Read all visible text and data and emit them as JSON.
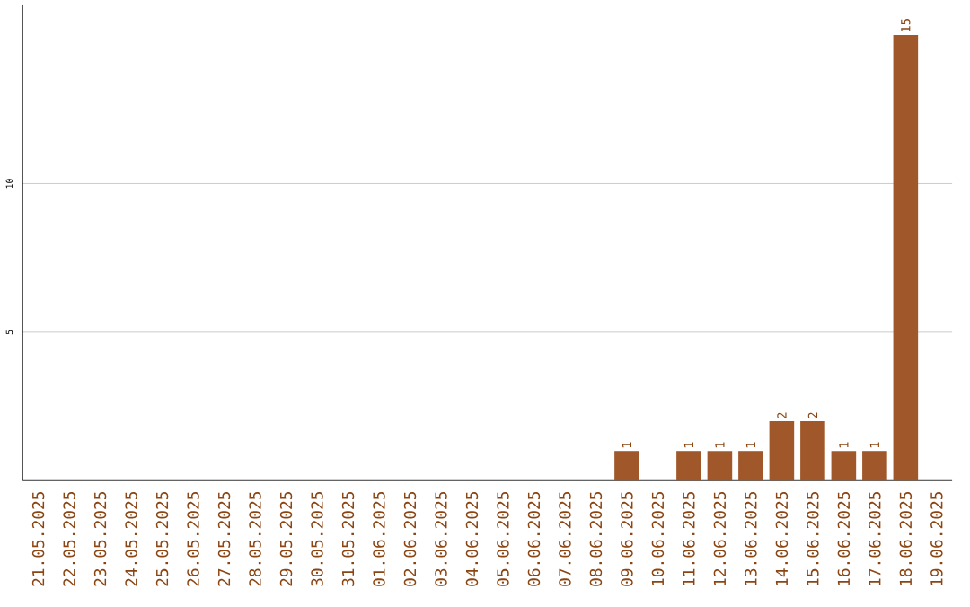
{
  "chart_data": {
    "type": "bar",
    "categories": [
      "21.05.2025",
      "22.05.2025",
      "23.05.2025",
      "24.05.2025",
      "25.05.2025",
      "26.05.2025",
      "27.05.2025",
      "28.05.2025",
      "29.05.2025",
      "30.05.2025",
      "31.05.2025",
      "01.06.2025",
      "02.06.2025",
      "03.06.2025",
      "04.06.2025",
      "05.06.2025",
      "06.06.2025",
      "07.06.2025",
      "08.06.2025",
      "09.06.2025",
      "10.06.2025",
      "11.06.2025",
      "12.06.2025",
      "13.06.2025",
      "14.06.2025",
      "15.06.2025",
      "16.06.2025",
      "17.06.2025",
      "18.06.2025",
      "19.06.2025"
    ],
    "values": [
      0,
      0,
      0,
      0,
      0,
      0,
      0,
      0,
      0,
      0,
      0,
      0,
      0,
      0,
      0,
      0,
      0,
      0,
      0,
      1,
      0,
      1,
      1,
      1,
      2,
      2,
      1,
      1,
      15,
      0
    ],
    "value_labels": [
      null,
      null,
      null,
      null,
      null,
      null,
      null,
      null,
      null,
      null,
      null,
      null,
      null,
      null,
      null,
      null,
      null,
      null,
      null,
      "1",
      null,
      "1",
      "1",
      "1",
      "2",
      "2",
      "1",
      "1",
      "15",
      null
    ],
    "color": "#a0582a",
    "ylim": [
      0,
      16
    ],
    "yticks": [
      5,
      10
    ],
    "grid": "y"
  }
}
